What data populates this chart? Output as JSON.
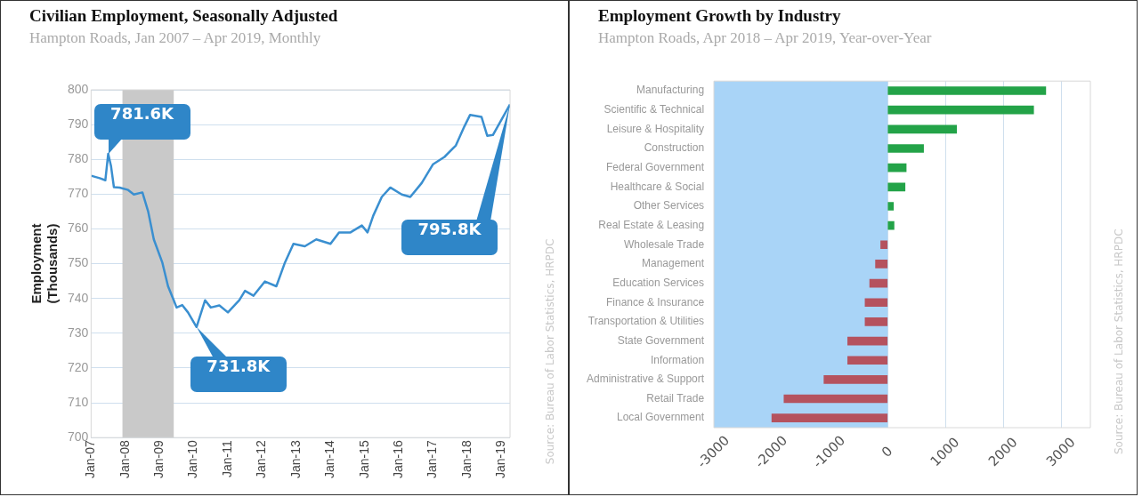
{
  "chart_data": [
    {
      "type": "line",
      "title": "Civilian Employment, Seasonally Adjusted",
      "subtitle": "Hampton Roads, Jan 2007 – Apr 2019, Monthly",
      "ylabel": "Employment (Thousands)",
      "x": [
        "2007-01",
        "2007-04",
        "2007-06",
        "2007-07",
        "2007-08",
        "2007-09",
        "2007-11",
        "2008-02",
        "2008-04",
        "2008-07",
        "2008-09",
        "2008-11",
        "2009-02",
        "2009-04",
        "2009-06",
        "2009-07",
        "2009-09",
        "2009-11",
        "2010-02",
        "2010-05",
        "2010-07",
        "2010-10",
        "2011-01",
        "2011-05",
        "2011-07",
        "2011-10",
        "2012-02",
        "2012-06",
        "2012-09",
        "2012-12",
        "2013-04",
        "2013-08",
        "2014-01",
        "2014-04",
        "2014-08",
        "2014-12",
        "2015-02",
        "2015-04",
        "2015-07",
        "2015-10",
        "2016-02",
        "2016-05",
        "2016-09",
        "2017-01",
        "2017-05",
        "2017-09",
        "2017-12",
        "2018-02",
        "2018-06",
        "2018-08",
        "2018-10",
        "2019-04"
      ],
      "series": [
        {
          "color": "#3a8fd0",
          "values": [
            775.3,
            774.6,
            774,
            781.6,
            778,
            772,
            771.9,
            771.2,
            769.9,
            770.5,
            765.1,
            757,
            750.3,
            743.5,
            739.5,
            737.4,
            738.1,
            736,
            731.8,
            739.5,
            737.4,
            738,
            736,
            739.5,
            742.2,
            740.8,
            744.9,
            743.5,
            750.3,
            755.7,
            755,
            757,
            755.7,
            759,
            759,
            761,
            759,
            763.8,
            769.2,
            771.9,
            769.9,
            769.2,
            773.2,
            778.6,
            780.7,
            784,
            789.5,
            792.8,
            792.2,
            786.8,
            787,
            795.8
          ]
        }
      ],
      "xlim": [
        "2007-01",
        "2019-04"
      ],
      "xticks": [
        {
          "value": "2007-01",
          "label": "Jan-07"
        },
        {
          "value": "2008-01",
          "label": "Jan-08"
        },
        {
          "value": "2009-01",
          "label": "Jan-09"
        },
        {
          "value": "2010-01",
          "label": "Jan-10"
        },
        {
          "value": "2011-01",
          "label": "Jan-11"
        },
        {
          "value": "2012-01",
          "label": "Jan-12"
        },
        {
          "value": "2013-01",
          "label": "Jan-13"
        },
        {
          "value": "2014-01",
          "label": "Jan-14"
        },
        {
          "value": "2015-01",
          "label": "Jan-15"
        },
        {
          "value": "2016-01",
          "label": "Jan-16"
        },
        {
          "value": "2017-01",
          "label": "Jan-17"
        },
        {
          "value": "2018-01",
          "label": "Jan-18"
        },
        {
          "value": "2019-01",
          "label": "Jan-19"
        }
      ],
      "ylim": [
        700,
        800
      ],
      "yticks": [
        700,
        710,
        720,
        730,
        740,
        750,
        760,
        770,
        780,
        790,
        800
      ],
      "grid": "y",
      "bands": [
        {
          "axis": "x",
          "from": "2007-12",
          "to": "2009-06",
          "color": "#c9c9c9"
        }
      ],
      "annotations": [
        {
          "text": "781.6K",
          "x": "2007-07",
          "y": 781.6
        },
        {
          "text": "731.8K",
          "x": "2010-02",
          "y": 731.8
        },
        {
          "text": "795.8K",
          "x": "2019-04",
          "y": 795.8
        },
        "Source: Bureau of Labor Statistics, HRPDC"
      ]
    },
    {
      "type": "bar",
      "orientation": "horizontal",
      "title": "Employment Growth by Industry",
      "subtitle": "Hampton Roads, Apr 2018 – Apr 2019, Year-over-Year",
      "categories": [
        "Manufacturing",
        "Scientific & Technical",
        "Leisure & Hospitality",
        "Construction",
        "Federal Government",
        "Healthcare & Social",
        "Other Services",
        "Real Estate & Leasing",
        "Wholesale Trade",
        "Management",
        "Education Services",
        "Finance & Insurance",
        "Transportation & Utilities",
        "State Government",
        "Information",
        "Administrative & Support",
        "Retail Trade",
        "Local Government"
      ],
      "values": [
        2730,
        2520,
        1190,
        620,
        320,
        300,
        100,
        110,
        -120,
        -210,
        -310,
        -390,
        -390,
        -690,
        -690,
        -1100,
        -1790,
        -2000
      ],
      "colors": [
        "#23a348",
        "#23a348",
        "#23a348",
        "#23a348",
        "#23a348",
        "#23a348",
        "#23a348",
        "#23a348",
        "#b5525e",
        "#b5525e",
        "#b5525e",
        "#b5525e",
        "#b5525e",
        "#b5525e",
        "#b5525e",
        "#b5525e",
        "#b5525e",
        "#b5525e"
      ],
      "xlim": [
        -3000,
        3500
      ],
      "xticks": [
        -3000,
        -2000,
        -1000,
        0,
        1000,
        2000,
        3000
      ],
      "grid": "x",
      "bands": [
        {
          "axis": "x",
          "from": -3000,
          "to": 0,
          "color": "#a9d4f7"
        }
      ],
      "annotations": [
        "Source: Bureau of Labor Statistics, HRPDC"
      ]
    }
  ]
}
